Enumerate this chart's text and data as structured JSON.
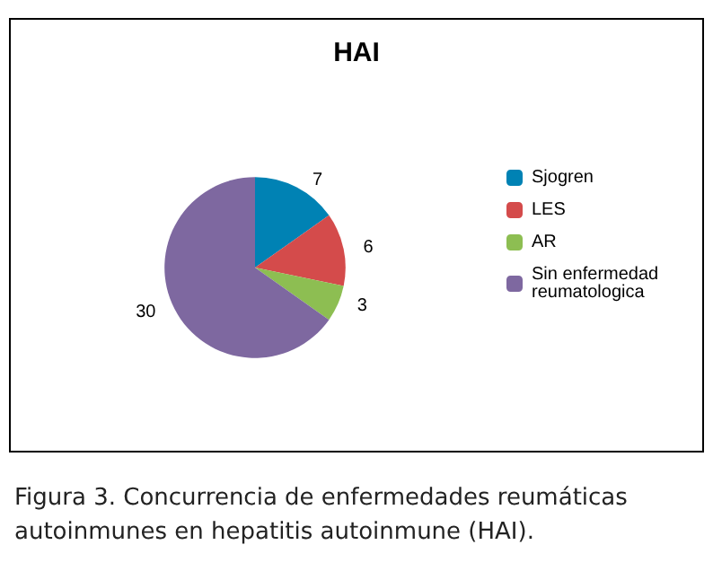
{
  "chart_data": {
    "type": "pie",
    "title": "HAI",
    "categories": [
      "Sjogren",
      "LES",
      "AR",
      "Sin enfermedad reumatologica"
    ],
    "values": [
      7,
      6,
      3,
      30
    ],
    "colors": [
      "#0082b4",
      "#d44b4b",
      "#8dbe52",
      "#7e68a0"
    ],
    "data_labels": true,
    "legend": "right",
    "annotations": [
      "Figura 3. Concurrencia de enfermedades reumáticas autoinmunes en hepatitis autoinmune (HAI)."
    ]
  }
}
